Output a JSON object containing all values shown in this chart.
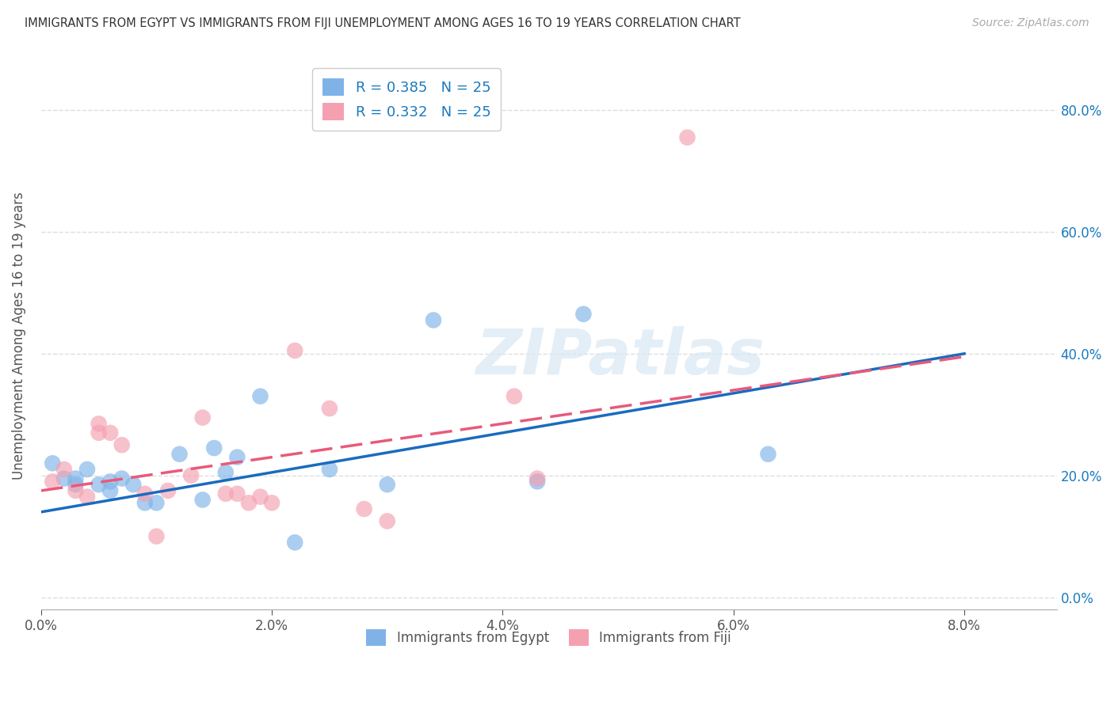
{
  "title": "IMMIGRANTS FROM EGYPT VS IMMIGRANTS FROM FIJI UNEMPLOYMENT AMONG AGES 16 TO 19 YEARS CORRELATION CHART",
  "source": "Source: ZipAtlas.com",
  "xlabel_ticks": [
    "0.0%",
    "2.0%",
    "4.0%",
    "6.0%",
    "8.0%"
  ],
  "xlabel_tick_vals": [
    0.0,
    0.02,
    0.04,
    0.06,
    0.08
  ],
  "ylabel_ticks": [
    "0.0%",
    "20.0%",
    "40.0%",
    "60.0%",
    "80.0%"
  ],
  "ylabel_tick_vals": [
    0.0,
    0.2,
    0.4,
    0.6,
    0.8
  ],
  "ylabel": "Unemployment Among Ages 16 to 19 years",
  "xlim": [
    0.0,
    0.088
  ],
  "ylim": [
    -0.02,
    0.88
  ],
  "egypt_color": "#7fb3e8",
  "fiji_color": "#f4a0b0",
  "egypt_R": 0.385,
  "egypt_N": 25,
  "fiji_R": 0.332,
  "fiji_N": 25,
  "egypt_line_color": "#1a6bbf",
  "fiji_line_color": "#e85a7a",
  "egypt_line_y0": 0.14,
  "egypt_line_y1": 0.4,
  "fiji_line_y0": 0.175,
  "fiji_line_y1": 0.395,
  "egypt_x": [
    0.001,
    0.002,
    0.003,
    0.003,
    0.004,
    0.005,
    0.006,
    0.006,
    0.007,
    0.008,
    0.009,
    0.01,
    0.012,
    0.014,
    0.015,
    0.016,
    0.017,
    0.019,
    0.022,
    0.025,
    0.03,
    0.034,
    0.043,
    0.047,
    0.063
  ],
  "egypt_y": [
    0.22,
    0.195,
    0.195,
    0.185,
    0.21,
    0.185,
    0.175,
    0.19,
    0.195,
    0.185,
    0.155,
    0.155,
    0.235,
    0.16,
    0.245,
    0.205,
    0.23,
    0.33,
    0.09,
    0.21,
    0.185,
    0.455,
    0.19,
    0.465,
    0.235
  ],
  "fiji_x": [
    0.001,
    0.002,
    0.003,
    0.004,
    0.005,
    0.005,
    0.006,
    0.007,
    0.009,
    0.01,
    0.011,
    0.013,
    0.014,
    0.016,
    0.017,
    0.018,
    0.019,
    0.02,
    0.022,
    0.025,
    0.028,
    0.03,
    0.041,
    0.043,
    0.056
  ],
  "fiji_y": [
    0.19,
    0.21,
    0.175,
    0.165,
    0.285,
    0.27,
    0.27,
    0.25,
    0.17,
    0.1,
    0.175,
    0.2,
    0.295,
    0.17,
    0.17,
    0.155,
    0.165,
    0.155,
    0.405,
    0.31,
    0.145,
    0.125,
    0.33,
    0.195,
    0.755
  ],
  "watermark_text": "ZIPatlas",
  "background_color": "#ffffff",
  "grid_color": "#dddddd"
}
